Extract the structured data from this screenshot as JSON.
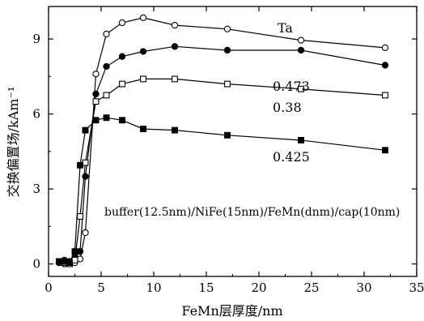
{
  "chart_data": {
    "type": "line",
    "xlabel": "FeMn层厚度/nm",
    "ylabel": "交换偏置场/kAm⁻¹",
    "xlim": [
      0,
      35
    ],
    "ylim": [
      -0.5,
      10.3
    ],
    "xticks": [
      0,
      5,
      10,
      15,
      20,
      25,
      30,
      35
    ],
    "yticks": [
      0,
      3,
      6,
      9
    ],
    "grid": false,
    "legend": "none",
    "annotation": "buffer(12.5nm)/NiFe(15nm)/FeMn(dnm)/cap(10nm)",
    "series": [
      {
        "name": "Ta",
        "marker": "open-circle",
        "points": [
          [
            1,
            0.05
          ],
          [
            1.5,
            0.0
          ],
          [
            2,
            0.1
          ],
          [
            2.5,
            0.05
          ],
          [
            3,
            0.2
          ],
          [
            3.5,
            1.25
          ],
          [
            4.5,
            7.6
          ],
          [
            5.5,
            9.2
          ],
          [
            7,
            9.65
          ],
          [
            9,
            9.85
          ],
          [
            12,
            9.55
          ],
          [
            17,
            9.4
          ],
          [
            24,
            8.95
          ],
          [
            32,
            8.65
          ]
        ]
      },
      {
        "name": "0.473",
        "marker": "filled-circle",
        "points": [
          [
            1,
            0.05
          ],
          [
            1.5,
            0.15
          ],
          [
            2,
            0.1
          ],
          [
            2.5,
            0.3
          ],
          [
            3,
            0.5
          ],
          [
            3.5,
            3.5
          ],
          [
            4.5,
            6.8
          ],
          [
            5.5,
            7.9
          ],
          [
            7,
            8.3
          ],
          [
            9,
            8.5
          ],
          [
            12,
            8.7
          ],
          [
            17,
            8.55
          ],
          [
            24,
            8.55
          ],
          [
            32,
            7.95
          ]
        ]
      },
      {
        "name": "0.38",
        "marker": "open-square",
        "points": [
          [
            1,
            0.1
          ],
          [
            1.5,
            0.05
          ],
          [
            2,
            0.0
          ],
          [
            2.5,
            0.15
          ],
          [
            3,
            1.9
          ],
          [
            3.5,
            4.05
          ],
          [
            4.5,
            6.5
          ],
          [
            5.5,
            6.75
          ],
          [
            7,
            7.2
          ],
          [
            9,
            7.4
          ],
          [
            12,
            7.4
          ],
          [
            17,
            7.2
          ],
          [
            24,
            7.0
          ],
          [
            32,
            6.75
          ]
        ]
      },
      {
        "name": "0.425",
        "marker": "filled-square",
        "points": [
          [
            1,
            0.1
          ],
          [
            1.5,
            0.1
          ],
          [
            2,
            0.05
          ],
          [
            2.5,
            0.5
          ],
          [
            3,
            3.95
          ],
          [
            3.5,
            5.35
          ],
          [
            4.5,
            5.75
          ],
          [
            5.5,
            5.85
          ],
          [
            7,
            5.75
          ],
          [
            9,
            5.4
          ],
          [
            12,
            5.35
          ],
          [
            17,
            5.15
          ],
          [
            24,
            4.95
          ],
          [
            32,
            4.55
          ]
        ]
      }
    ]
  }
}
